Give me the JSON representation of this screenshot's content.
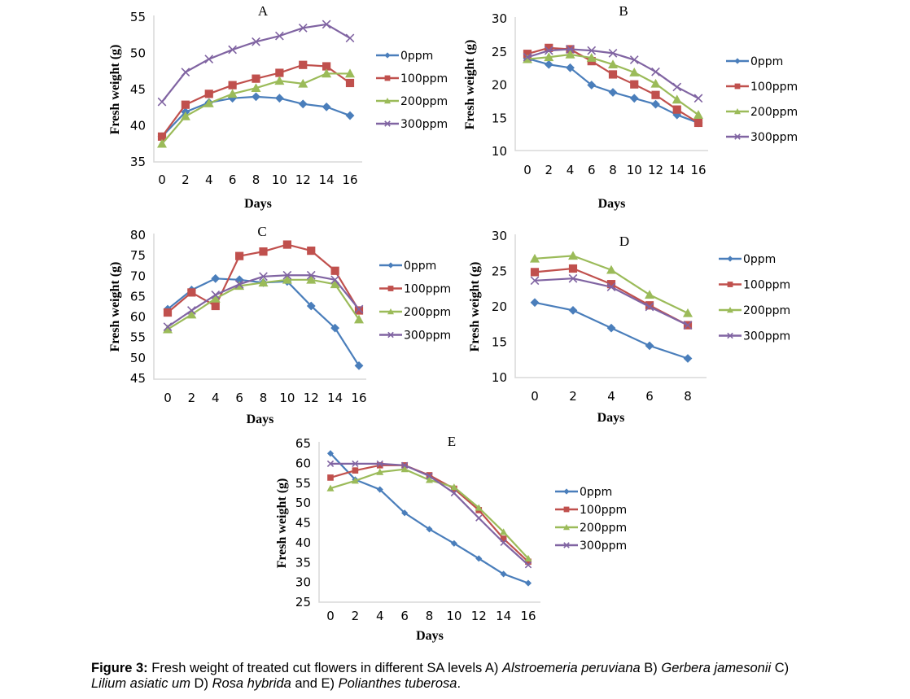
{
  "chart_data": [
    {
      "id": "A",
      "type": "line",
      "title": "A",
      "xlabel": "Days",
      "ylabel": "Fresh weight (g)",
      "x": [
        0,
        2,
        4,
        6,
        8,
        10,
        12,
        14,
        16
      ],
      "xticks": [
        "0",
        "2",
        "4",
        "6",
        "8",
        "10",
        "12",
        "14",
        "16"
      ],
      "ylim": [
        35,
        55
      ],
      "yticks": [
        35,
        40,
        45,
        50,
        55
      ],
      "grid": false,
      "legend_position": "right",
      "series": [
        {
          "name": "0ppm",
          "marker": "diamond",
          "color": "#4a7ebb",
          "values": [
            38.5,
            41.9,
            43.2,
            43.8,
            44.0,
            43.8,
            43.0,
            42.6,
            41.4
          ]
        },
        {
          "name": "100ppm",
          "marker": "square",
          "color": "#c0504d",
          "values": [
            38.5,
            42.9,
            44.4,
            45.6,
            46.5,
            47.3,
            48.4,
            48.2,
            45.9
          ]
        },
        {
          "name": "200ppm",
          "marker": "triangle",
          "color": "#9bbb59",
          "values": [
            37.5,
            41.3,
            43.1,
            44.4,
            45.2,
            46.2,
            45.8,
            47.2,
            47.2
          ]
        },
        {
          "name": "300ppm",
          "marker": "x",
          "color": "#8064a2",
          "values": [
            43.3,
            47.4,
            49.2,
            50.5,
            51.6,
            52.4,
            53.5,
            54.0,
            52.1
          ]
        }
      ]
    },
    {
      "id": "B",
      "type": "line",
      "title": "B",
      "xlabel": "Days",
      "ylabel": "Fresh weight (g)",
      "x": [
        0,
        2,
        4,
        6,
        8,
        10,
        12,
        14,
        16
      ],
      "xticks": [
        "0",
        "2",
        "4",
        "6",
        "8",
        "10",
        "12",
        "14",
        "16"
      ],
      "ylim": [
        10,
        30
      ],
      "yticks": [
        10,
        15,
        20,
        25,
        30
      ],
      "grid": false,
      "legend_position": "right",
      "series": [
        {
          "name": "0ppm",
          "marker": "diamond",
          "color": "#4a7ebb",
          "values": [
            24.0,
            23.1,
            22.6,
            20.0,
            18.9,
            18.0,
            17.1,
            15.5,
            14.3
          ]
        },
        {
          "name": "100ppm",
          "marker": "square",
          "color": "#c0504d",
          "values": [
            24.7,
            25.6,
            25.4,
            23.6,
            21.6,
            20.1,
            18.5,
            16.3,
            14.3
          ]
        },
        {
          "name": "200ppm",
          "marker": "triangle",
          "color": "#9bbb59",
          "values": [
            23.9,
            24.2,
            24.6,
            24.1,
            23.1,
            21.9,
            20.2,
            17.8,
            15.5
          ]
        },
        {
          "name": "300ppm",
          "marker": "x",
          "color": "#8064a2",
          "values": [
            24.2,
            25.2,
            25.4,
            25.2,
            24.8,
            23.8,
            22.0,
            19.7,
            18.0
          ]
        }
      ]
    },
    {
      "id": "C",
      "type": "line",
      "title": "C",
      "xlabel": "Days",
      "ylabel": "Fresh weight (g)",
      "x": [
        0,
        2,
        4,
        6,
        8,
        10,
        12,
        14,
        16
      ],
      "xticks": [
        "0",
        "2",
        "4",
        "6",
        "8",
        "10",
        "12",
        "14",
        "16"
      ],
      "ylim": [
        45,
        80
      ],
      "yticks": [
        45,
        50,
        55,
        60,
        65,
        70,
        75,
        80
      ],
      "grid": false,
      "legend_position": "right",
      "series": [
        {
          "name": "0ppm",
          "marker": "diamond",
          "color": "#4a7ebb",
          "values": [
            61.9,
            66.6,
            69.4,
            69.1,
            68.4,
            68.7,
            62.7,
            57.3,
            48.1
          ]
        },
        {
          "name": "100ppm",
          "marker": "square",
          "color": "#c0504d",
          "values": [
            61.1,
            66.0,
            62.7,
            74.9,
            76.0,
            77.7,
            76.2,
            71.3,
            61.6
          ]
        },
        {
          "name": "200ppm",
          "marker": "triangle",
          "color": "#9bbb59",
          "values": [
            57.0,
            60.6,
            64.5,
            67.6,
            68.4,
            69.1,
            69.1,
            68.0,
            59.4
          ]
        },
        {
          "name": "300ppm",
          "marker": "x",
          "color": "#8064a2",
          "values": [
            57.6,
            61.6,
            65.4,
            68.0,
            69.9,
            70.2,
            70.2,
            69.1,
            61.9
          ]
        }
      ]
    },
    {
      "id": "D",
      "type": "line",
      "title": "D",
      "xlabel": "Days",
      "ylabel": "Fresh weight (g)",
      "x": [
        0,
        2,
        4,
        6,
        8
      ],
      "xticks": [
        "0",
        "2",
        "4",
        "6",
        "8"
      ],
      "ylim": [
        10,
        30
      ],
      "yticks": [
        10,
        15,
        20,
        25,
        30
      ],
      "grid": false,
      "legend_position": "right",
      "series": [
        {
          "name": "0ppm",
          "marker": "diamond",
          "color": "#4a7ebb",
          "values": [
            20.6,
            19.5,
            17.0,
            14.5,
            12.7
          ]
        },
        {
          "name": "100ppm",
          "marker": "square",
          "color": "#c0504d",
          "values": [
            24.9,
            25.4,
            23.2,
            20.2,
            17.4
          ]
        },
        {
          "name": "200ppm",
          "marker": "triangle",
          "color": "#9bbb59",
          "values": [
            26.8,
            27.2,
            25.2,
            21.7,
            19.1
          ]
        },
        {
          "name": "300ppm",
          "marker": "x",
          "color": "#8064a2",
          "values": [
            23.7,
            24.0,
            22.8,
            20.0,
            17.4
          ]
        }
      ]
    },
    {
      "id": "E",
      "type": "line",
      "title": "E",
      "xlabel": "Days",
      "ylabel": "Fresh weight (g)",
      "x": [
        0,
        2,
        4,
        6,
        8,
        10,
        12,
        14,
        16
      ],
      "xticks": [
        "0",
        "2",
        "4",
        "6",
        "8",
        "10",
        "12",
        "14",
        "16"
      ],
      "ylim": [
        25,
        65
      ],
      "yticks": [
        25,
        30,
        35,
        40,
        45,
        50,
        55,
        60,
        65
      ],
      "grid": false,
      "legend_position": "right",
      "series": [
        {
          "name": "0ppm",
          "marker": "diamond",
          "color": "#4a7ebb",
          "values": [
            62.5,
            55.9,
            53.4,
            47.5,
            43.4,
            39.8,
            36.0,
            32.1,
            29.8
          ]
        },
        {
          "name": "100ppm",
          "marker": "square",
          "color": "#c0504d",
          "values": [
            56.4,
            58.2,
            59.5,
            59.5,
            57.0,
            53.6,
            48.2,
            41.0,
            35.2
          ]
        },
        {
          "name": "200ppm",
          "marker": "triangle",
          "color": "#9bbb59",
          "values": [
            53.7,
            55.6,
            57.8,
            58.5,
            55.8,
            54.0,
            48.8,
            42.7,
            36.0
          ]
        },
        {
          "name": "300ppm",
          "marker": "x",
          "color": "#8064a2",
          "values": [
            59.9,
            59.9,
            59.9,
            59.5,
            56.8,
            52.5,
            46.2,
            40.0,
            34.4
          ]
        }
      ]
    }
  ],
  "caption": {
    "label": "Figure 3:",
    "text_1": " Fresh weight of treated cut flowers in different SA levels A) ",
    "species_a": "Alstroemeria peruviana",
    "text_2": " B) ",
    "species_b": "Gerbera jamesonii",
    "text_3": " C) ",
    "species_c": "Lilium asiatic um",
    "text_4": " D) ",
    "species_d": "Rosa hybrida",
    "text_5": " and E) ",
    "species_e": "Polianthes tuberosa",
    "text_6": "."
  }
}
